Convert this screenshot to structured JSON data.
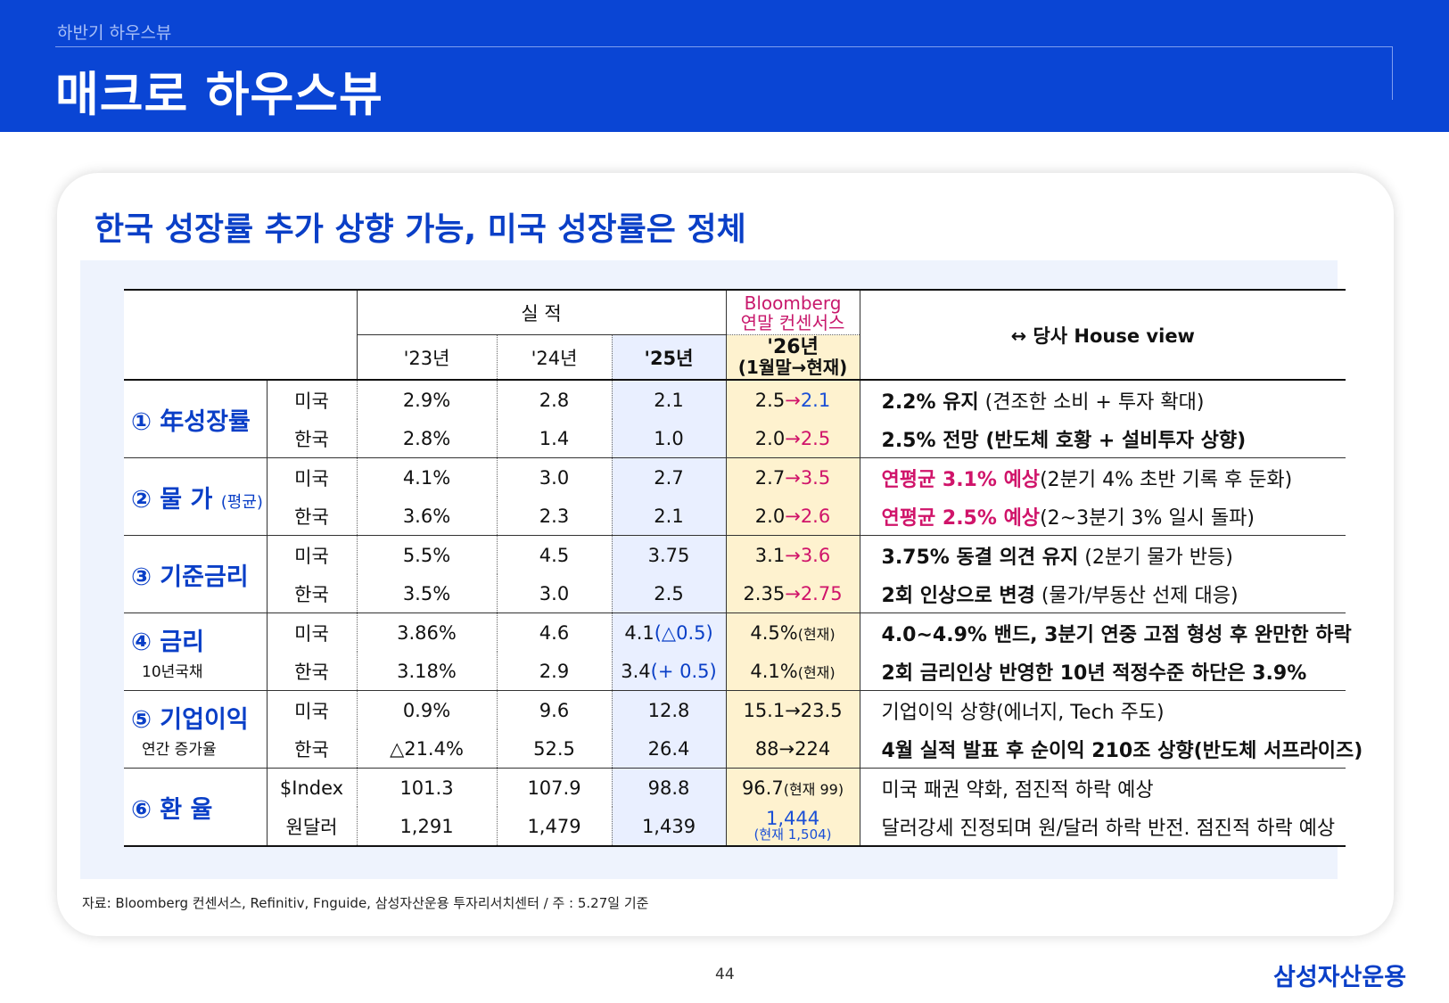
{
  "header": {
    "subtitle": "하반기 하우스뷰",
    "title": "매크로 하우스뷰"
  },
  "card": {
    "headline": "한국 성장률 추가 상향 가능, 미국 성장률은 정체"
  },
  "table": {
    "group_actual": "실 적",
    "bloomberg_line1": "Bloomberg",
    "bloomberg_line2": "연말 컨센서스",
    "house_view": "↔ 당사 House view",
    "col_23": "'23년",
    "col_24": "'24년",
    "col_25": "'25년",
    "col_26_line1": "'26년",
    "col_26_line2": "(1월말→현재)",
    "cat1": "① 年성장률",
    "cat2": "② 물 가",
    "cat2_sub": "(평균)",
    "cat3": "③ 기준금리",
    "cat4": "④ 금리",
    "cat4_sub": "10년국채",
    "cat5": "⑤ 기업이익",
    "cat5_sub": "연간 증가율",
    "cat6": "⑥ 환 율",
    "us": "미국",
    "kr": "한국",
    "dindex": "$Index",
    "wondollar": "원달러",
    "r1": {
      "v23": "2.9%",
      "v24": "2.8",
      "v25": "2.1",
      "v26a": "2.5",
      "v26b": "2.1",
      "view_bold": "2.2% 유지",
      "view_rest": " (견조한 소비 + 투자 확대)"
    },
    "r2": {
      "v23": "2.8%",
      "v24": "1.4",
      "v25": "1.0",
      "v26a": "2.0",
      "v26b": "2.5",
      "view": "2.5% 전망 (반도체 호황 + 설비투자 상향)"
    },
    "r3": {
      "v23": "4.1%",
      "v24": "3.0",
      "v25": "2.7",
      "v26a": "2.7",
      "v26b": "3.5",
      "view_pink": "연평균 3.1% 예상",
      "view_rest": "(2분기 4% 초반 기록 후 둔화)"
    },
    "r4": {
      "v23": "3.6%",
      "v24": "2.3",
      "v25": "2.1",
      "v26a": "2.0",
      "v26b": "2.6",
      "view_pink": "연평균 2.5% 예상",
      "view_rest": "(2~3분기 3% 일시 돌파)"
    },
    "r5": {
      "v23": "5.5%",
      "v24": "4.5",
      "v25": "3.75",
      "v26a": "3.1",
      "v26b": "3.6",
      "view_bold": "3.75% 동결 의견 유지",
      "view_rest": " (2분기 물가 반등)"
    },
    "r6": {
      "v23": "3.5%",
      "v24": "3.0",
      "v25": "2.5",
      "v26a": "2.35",
      "v26b": "2.75",
      "view_bold": "2회 인상으로 변경",
      "view_rest": " (물가/부동산 선제 대응)"
    },
    "r7": {
      "v23": "3.86%",
      "v24": "4.6",
      "v25a": "4.1",
      "v25b": "(△0.5)",
      "v26a": "4.5%",
      "v26b": "(현재)",
      "view": "4.0~4.9% 밴드, 3분기 연중 고점 형성 후 완만한 하락"
    },
    "r8": {
      "v23": "3.18%",
      "v24": "2.9",
      "v25a": "3.4",
      "v25b": "(+ 0.5)",
      "v26a": "4.1%",
      "v26b": "(현재)",
      "view": "2회 금리인상 반영한 10년 적정수준 하단은 3.9%"
    },
    "r9": {
      "v23": "0.9%",
      "v24": "9.6",
      "v25": "12.8",
      "v26": "15.1→23.5",
      "view": "기업이익 상향(에너지, Tech 주도)"
    },
    "r10": {
      "v23": "△21.4%",
      "v24": "52.5",
      "v25": "26.4",
      "v26": "88→224",
      "view": "4월 실적 발표 후 순이익 210조 상향(반도체 서프라이즈)"
    },
    "r11": {
      "v23": "101.3",
      "v24": "107.9",
      "v25": "98.8",
      "v26": "96.7",
      "v26b": "(현재 99)",
      "view": "미국 패권 약화, 점진적 하락 예상"
    },
    "r12": {
      "v23": "1,291",
      "v24": "1,479",
      "v25": "1,439",
      "v26a": "1,444",
      "v26b": "(현재 1,504)",
      "view": "달러강세 진정되며 원/달러 하락 반전. 점진적 하락 예상"
    },
    "arrow": "→"
  },
  "source": "자료: Bloomberg 컨센서스, Refinitiv, Fnguide, 삼성자산운용 투자리서치센터 / 주 : 5.27일 기준",
  "page_number": "44",
  "logo": "삼성자산운용",
  "colors": {
    "brand_blue": "#0a45d4",
    "accent_pink": "#d0146a",
    "consensus_bg": "#fef2cf",
    "actual25_bg": "#e9efff"
  }
}
